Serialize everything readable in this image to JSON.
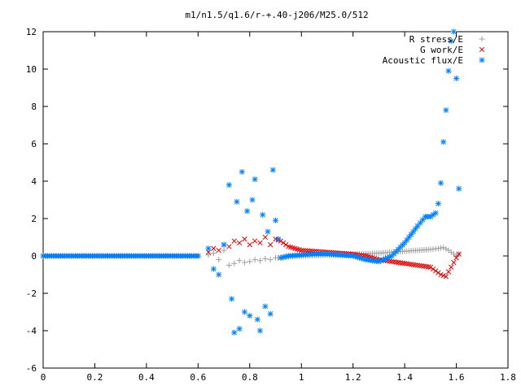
{
  "chart_data": {
    "type": "scatter",
    "title": "m1/n1.5/q1.6/r-+.40-j206/M25.0/512",
    "xlabel": "",
    "ylabel": "",
    "xlim": [
      0,
      1.8
    ],
    "ylim": [
      -6,
      12
    ],
    "x_ticks": [
      0,
      0.2,
      0.4,
      0.6,
      0.8,
      1,
      1.2,
      1.4,
      1.6,
      1.8
    ],
    "x_tick_labels": [
      "0",
      "0.2",
      "0.4",
      "0.6",
      "0.8",
      "1",
      "1.2",
      "1.4",
      "1.6",
      "1.8"
    ],
    "y_ticks": [
      -6,
      -4,
      -2,
      0,
      2,
      4,
      6,
      8,
      10,
      12
    ],
    "y_tick_labels": [
      "-6",
      "-4",
      "-2",
      "0",
      "2",
      "4",
      "6",
      "8",
      "10",
      "12"
    ],
    "grid": false,
    "legend_position": "top-right",
    "series": [
      {
        "name": "R stress/E",
        "marker": "plus",
        "color": "#a0a0a0",
        "points": [
          [
            0.0,
            0.0
          ],
          [
            0.1,
            0.0
          ],
          [
            0.2,
            0.0
          ],
          [
            0.3,
            0.0
          ],
          [
            0.4,
            0.0
          ],
          [
            0.5,
            0.0
          ],
          [
            0.6,
            0.0
          ],
          [
            0.64,
            0.05
          ],
          [
            0.66,
            0.15
          ],
          [
            0.68,
            -0.2
          ],
          [
            0.7,
            0.3
          ],
          [
            0.72,
            -0.5
          ],
          [
            0.74,
            -0.4
          ],
          [
            0.76,
            -0.25
          ],
          [
            0.78,
            -0.35
          ],
          [
            0.8,
            -0.3
          ],
          [
            0.82,
            -0.2
          ],
          [
            0.84,
            -0.25
          ],
          [
            0.86,
            -0.15
          ],
          [
            0.88,
            -0.2
          ],
          [
            0.9,
            -0.1
          ],
          [
            0.92,
            -0.1
          ],
          [
            0.95,
            -0.05
          ],
          [
            1.0,
            0.0
          ],
          [
            1.05,
            0.02
          ],
          [
            1.1,
            0.05
          ],
          [
            1.15,
            0.05
          ],
          [
            1.2,
            0.08
          ],
          [
            1.25,
            0.12
          ],
          [
            1.3,
            0.15
          ],
          [
            1.35,
            0.2
          ],
          [
            1.4,
            0.25
          ],
          [
            1.45,
            0.3
          ],
          [
            1.5,
            0.35
          ],
          [
            1.53,
            0.4
          ],
          [
            1.55,
            0.45
          ],
          [
            1.57,
            0.3
          ],
          [
            1.59,
            0.1
          ],
          [
            1.6,
            0.0
          ],
          [
            1.61,
            0.1
          ]
        ]
      },
      {
        "name": "G work/E",
        "marker": "cross",
        "color": "#e00000",
        "points": [
          [
            0.0,
            0.0
          ],
          [
            0.1,
            0.0
          ],
          [
            0.2,
            0.0
          ],
          [
            0.3,
            0.0
          ],
          [
            0.4,
            0.0
          ],
          [
            0.5,
            0.0
          ],
          [
            0.6,
            0.0
          ],
          [
            0.64,
            0.2
          ],
          [
            0.66,
            0.4
          ],
          [
            0.68,
            0.3
          ],
          [
            0.7,
            0.6
          ],
          [
            0.72,
            0.5
          ],
          [
            0.74,
            0.8
          ],
          [
            0.76,
            0.7
          ],
          [
            0.78,
            0.9
          ],
          [
            0.8,
            0.6
          ],
          [
            0.82,
            0.8
          ],
          [
            0.84,
            0.7
          ],
          [
            0.86,
            1.0
          ],
          [
            0.88,
            0.6
          ],
          [
            0.9,
            0.9
          ],
          [
            0.92,
            0.8
          ],
          [
            0.95,
            0.5
          ],
          [
            1.0,
            0.3
          ],
          [
            1.05,
            0.25
          ],
          [
            1.1,
            0.2
          ],
          [
            1.15,
            0.15
          ],
          [
            1.2,
            0.1
          ],
          [
            1.25,
            0.0
          ],
          [
            1.3,
            -0.2
          ],
          [
            1.35,
            -0.3
          ],
          [
            1.4,
            -0.4
          ],
          [
            1.45,
            -0.5
          ],
          [
            1.5,
            -0.6
          ],
          [
            1.52,
            -0.8
          ],
          [
            1.54,
            -1.0
          ],
          [
            1.56,
            -1.1
          ],
          [
            1.58,
            -0.6
          ],
          [
            1.6,
            -0.1
          ],
          [
            1.61,
            0.1
          ]
        ]
      },
      {
        "name": "Acoustic flux/E",
        "marker": "star",
        "color": "#0080ff",
        "points": [
          [
            0.0,
            0.0
          ],
          [
            0.1,
            0.0
          ],
          [
            0.2,
            0.0
          ],
          [
            0.3,
            0.0
          ],
          [
            0.4,
            0.0
          ],
          [
            0.5,
            0.0
          ],
          [
            0.6,
            0.0
          ],
          [
            0.64,
            0.4
          ],
          [
            0.66,
            -0.7
          ],
          [
            0.68,
            -1.0
          ],
          [
            0.7,
            0.6
          ],
          [
            0.72,
            3.8
          ],
          [
            0.73,
            -2.3
          ],
          [
            0.74,
            -4.1
          ],
          [
            0.75,
            2.9
          ],
          [
            0.76,
            -3.9
          ],
          [
            0.77,
            4.5
          ],
          [
            0.78,
            -3.0
          ],
          [
            0.79,
            2.4
          ],
          [
            0.8,
            -3.2
          ],
          [
            0.81,
            3.0
          ],
          [
            0.82,
            4.1
          ],
          [
            0.83,
            -3.4
          ],
          [
            0.84,
            -4.0
          ],
          [
            0.85,
            2.2
          ],
          [
            0.86,
            -2.7
          ],
          [
            0.87,
            1.3
          ],
          [
            0.88,
            -3.1
          ],
          [
            0.89,
            4.6
          ],
          [
            0.9,
            1.9
          ],
          [
            0.92,
            -0.1
          ],
          [
            0.95,
            0.0
          ],
          [
            1.0,
            0.05
          ],
          [
            1.05,
            0.1
          ],
          [
            1.1,
            0.1
          ],
          [
            1.15,
            0.05
          ],
          [
            1.2,
            0.0
          ],
          [
            1.25,
            -0.2
          ],
          [
            1.3,
            -0.3
          ],
          [
            1.35,
            0.0
          ],
          [
            1.4,
            0.7
          ],
          [
            1.45,
            1.6
          ],
          [
            1.48,
            2.1
          ],
          [
            1.5,
            2.1
          ],
          [
            1.52,
            2.3
          ],
          [
            1.53,
            2.8
          ],
          [
            1.54,
            3.9
          ],
          [
            1.55,
            6.1
          ],
          [
            1.56,
            7.8
          ],
          [
            1.57,
            9.9
          ],
          [
            1.58,
            11.5
          ],
          [
            1.59,
            12.0
          ],
          [
            1.6,
            9.5
          ],
          [
            1.61,
            3.6
          ]
        ]
      }
    ]
  }
}
